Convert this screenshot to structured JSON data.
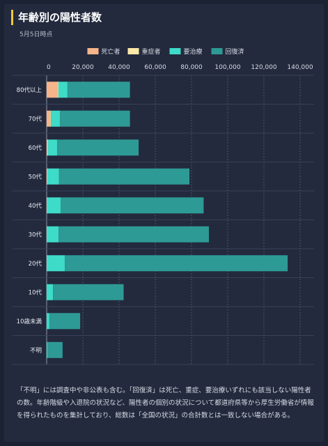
{
  "header": {
    "title": "年齢別の陽性者数",
    "subtitle": "5月5日時点"
  },
  "colors": {
    "deaths": "#f5b48a",
    "severe": "#fde9a8",
    "treating": "#3ddbc8",
    "recovered": "#2e9a95"
  },
  "chart_data": {
    "type": "bar",
    "orientation": "horizontal",
    "stacked": true,
    "categories": [
      "80代以上",
      "70代",
      "60代",
      "50代",
      "40代",
      "30代",
      "20代",
      "10代",
      "10歳未満",
      "不明"
    ],
    "series": [
      {
        "name": "死亡者",
        "values": [
          6000,
          2000,
          500,
          200,
          100,
          50,
          50,
          0,
          0,
          0
        ]
      },
      {
        "name": "重症者",
        "values": [
          500,
          400,
          300,
          150,
          100,
          50,
          50,
          20,
          0,
          0
        ]
      },
      {
        "name": "要治療",
        "values": [
          5000,
          5000,
          5000,
          6500,
          7500,
          6500,
          10000,
          3500,
          1500,
          500
        ]
      },
      {
        "name": "回復済",
        "values": [
          34500,
          38600,
          45000,
          72000,
          79000,
          83000,
          123000,
          39000,
          17000,
          8300
        ]
      }
    ],
    "xlim": [
      0,
      140000
    ],
    "xticks": [
      "0",
      "20,000",
      "40,000",
      "60,000",
      "80,000",
      "100,000",
      "120,000",
      "140,000"
    ],
    "legend_position": "top",
    "grid": true
  },
  "note": "「不明」には調査中や非公表も含む。「回復済」は死亡、重症、要治療いずれにも該当しない陽性者の数。年齢階級や入退院の状況など、陽性者の個別の状況について都道府県等から厚生労働省が情報を得られたものを集計しており、総数は「全国の状況」の合計数とは一致しない場合がある。"
}
